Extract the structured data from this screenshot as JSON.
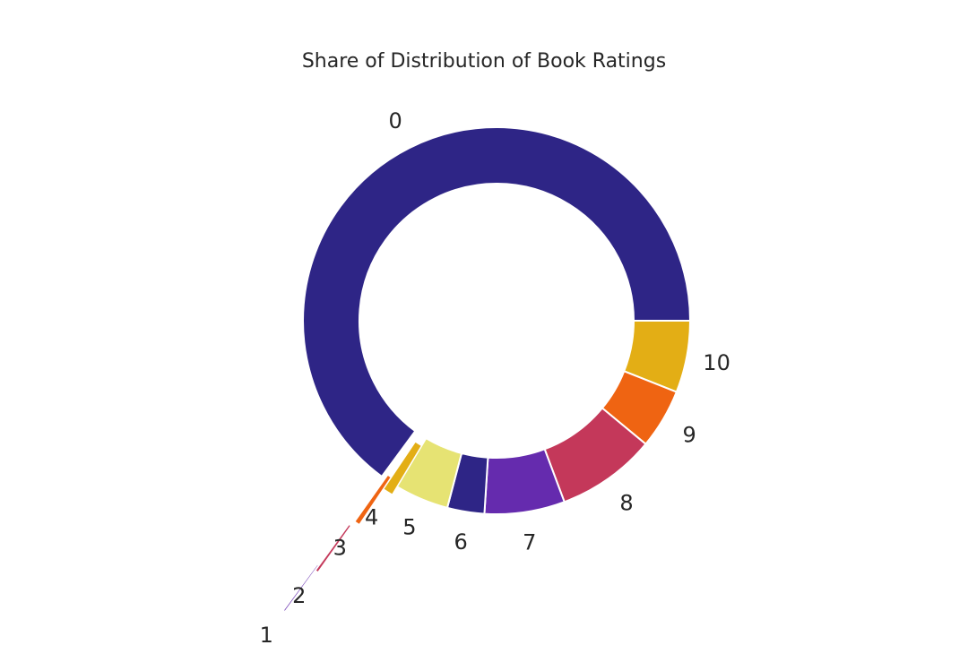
{
  "chart_data": {
    "type": "pie",
    "variant": "donut",
    "title": "Share of Distribution of Book Ratings",
    "start_angle_deg": 0,
    "direction": "clockwise",
    "slices": [
      {
        "label": "10",
        "value": 6.0,
        "color": "#E3AE15"
      },
      {
        "label": "9",
        "value": 5.0,
        "color": "#EF6412"
      },
      {
        "label": "8",
        "value": 8.3,
        "color": "#C4385A"
      },
      {
        "label": "7",
        "value": 6.7,
        "color": "#652BAE"
      },
      {
        "label": "6",
        "value": 3.1,
        "color": "#2E2586"
      },
      {
        "label": "5",
        "value": 4.5,
        "color": "#E6E373"
      },
      {
        "label": "4",
        "value": 0.8,
        "color": "#E3AE15"
      },
      {
        "label": "3",
        "value": 0.4,
        "color": "#EF6412"
      },
      {
        "label": "2",
        "value": 0.2,
        "color": "#C4385A"
      },
      {
        "label": "1",
        "value": 0.1,
        "color": "#652BAE"
      },
      {
        "label": "0",
        "value": 64.9,
        "color": "#2E2586"
      }
    ],
    "legend": "none"
  }
}
